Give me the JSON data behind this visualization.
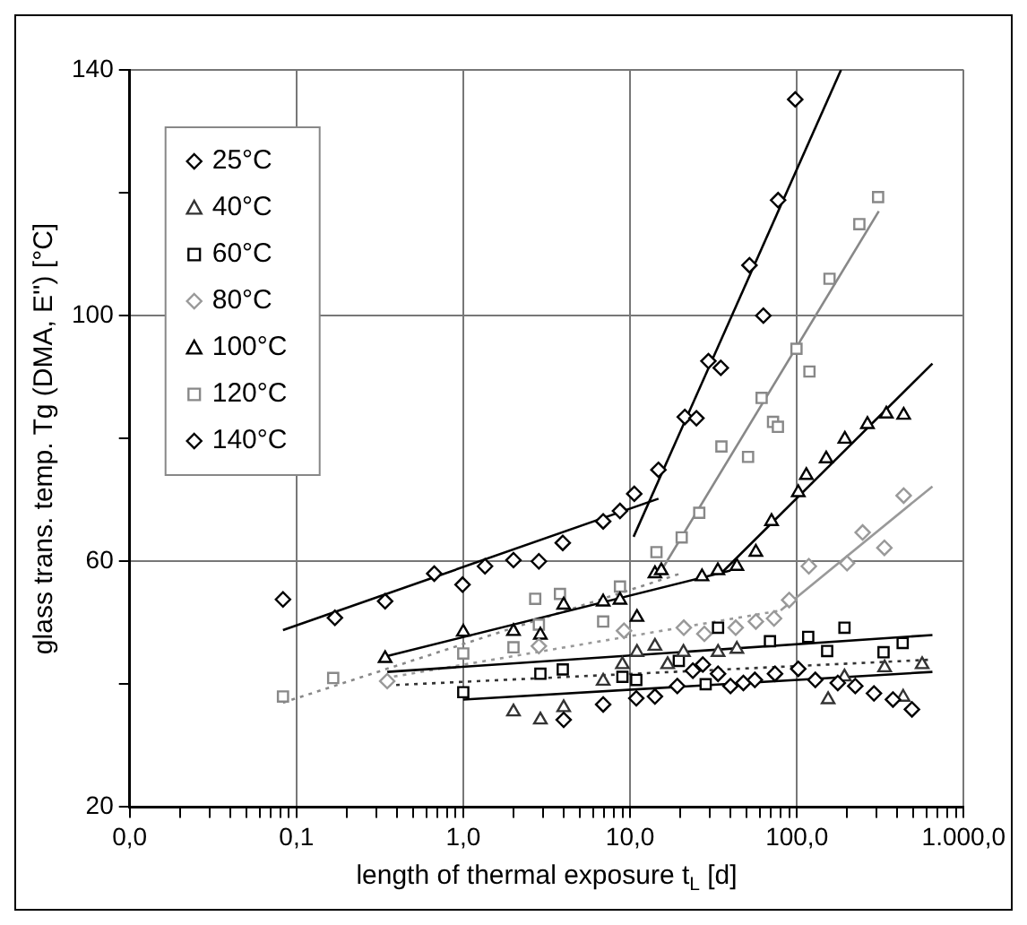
{
  "chart_data": {
    "type": "scatter",
    "xlabel": "length of thermal exposure t$_{L}$ [d]",
    "ylabel": "glass trans. temp. Tg (DMA, E'') [°C]",
    "log": "x",
    "xlim": [
      0.01,
      1000
    ],
    "xticks": [
      {
        "value": 0.01,
        "label": "0,0"
      },
      {
        "value": 0.02,
        "label": null
      },
      {
        "value": 0.03,
        "label": null
      },
      {
        "value": 0.04,
        "label": null
      },
      {
        "value": 0.05,
        "label": null
      },
      {
        "value": 0.06,
        "label": null
      },
      {
        "value": 0.07,
        "label": null
      },
      {
        "value": 0.08,
        "label": null
      },
      {
        "value": 0.09,
        "label": null
      },
      {
        "value": 0.1,
        "label": "0,1"
      },
      {
        "value": 0.2,
        "label": null
      },
      {
        "value": 0.3,
        "label": null
      },
      {
        "value": 0.4,
        "label": null
      },
      {
        "value": 0.5,
        "label": null
      },
      {
        "value": 0.6,
        "label": null
      },
      {
        "value": 0.7,
        "label": null
      },
      {
        "value": 0.8,
        "label": null
      },
      {
        "value": 0.9,
        "label": null
      },
      {
        "value": 1,
        "label": "1,0"
      },
      {
        "value": 2,
        "label": null
      },
      {
        "value": 3,
        "label": null
      },
      {
        "value": 4,
        "label": null
      },
      {
        "value": 5,
        "label": null
      },
      {
        "value": 6,
        "label": null
      },
      {
        "value": 7,
        "label": null
      },
      {
        "value": 8,
        "label": null
      },
      {
        "value": 9,
        "label": null
      },
      {
        "value": 10,
        "label": "10,0"
      },
      {
        "value": 20,
        "label": null
      },
      {
        "value": 30,
        "label": null
      },
      {
        "value": 40,
        "label": null
      },
      {
        "value": 50,
        "label": null
      },
      {
        "value": 60,
        "label": null
      },
      {
        "value": 70,
        "label": null
      },
      {
        "value": 80,
        "label": null
      },
      {
        "value": 90,
        "label": null
      },
      {
        "value": 100,
        "label": "100,0"
      },
      {
        "value": 200,
        "label": null
      },
      {
        "value": 300,
        "label": null
      },
      {
        "value": 400,
        "label": null
      },
      {
        "value": 500,
        "label": null
      },
      {
        "value": 600,
        "label": null
      },
      {
        "value": 700,
        "label": null
      },
      {
        "value": 800,
        "label": null
      },
      {
        "value": 900,
        "label": null
      },
      {
        "value": 1000,
        "label": "1.000,0"
      }
    ],
    "ylim": [
      20,
      140
    ],
    "yticks": [
      20,
      {
        "value": 40,
        "label": null
      },
      60,
      {
        "value": 80,
        "label": null
      },
      100,
      {
        "value": 120,
        "label": null
      },
      140
    ],
    "grid": true,
    "legend": "top left",
    "series": [
      {
        "name": "25°C",
        "color": "#000000",
        "marker": "diamond",
        "x": [
          4.0,
          6.9,
          10.9,
          14.1,
          19.2,
          23.8,
          27.3,
          33.7,
          40,
          47.8,
          56,
          74,
          102,
          129,
          176,
          224,
          290,
          377,
          490
        ],
        "values": [
          34.2,
          36.7,
          37.7,
          38,
          39.7,
          42.2,
          43.2,
          41.7,
          39.7,
          40.2,
          40.7,
          41.7,
          42.5,
          40.7,
          40.2,
          39.7,
          38.5,
          37.5,
          35.9
        ]
      },
      {
        "name": "40°C",
        "color": "#333333",
        "marker": "triangle",
        "x": [
          2.0,
          2.9,
          4.0,
          6.9,
          9,
          11,
          14.1,
          16.8,
          20.9,
          33.7,
          43.7,
          154,
          193,
          336,
          434,
          564
        ],
        "values": [
          35.5,
          34.2,
          36.2,
          40.5,
          43.2,
          45.2,
          46.2,
          43.2,
          45.2,
          45.2,
          45.7,
          37.5,
          41.2,
          42.7,
          37.9,
          43.2
        ]
      },
      {
        "name": "60°C",
        "color": "#000000",
        "marker": "square",
        "x": [
          1.0,
          2.9,
          3.95,
          9.0,
          10.9,
          19.6,
          28.4,
          33.7,
          69,
          117,
          152,
          193,
          331,
          431
        ],
        "values": [
          38.7,
          41.7,
          42.4,
          41.2,
          40.7,
          43.8,
          40,
          49.2,
          47,
          47.7,
          45.4,
          49.2,
          45.2,
          46.7
        ]
      },
      {
        "name": "80°C",
        "color": "#999999",
        "marker": "diamond",
        "x": [
          0.35,
          2.84,
          9.2,
          21,
          27.9,
          43,
          56.8,
          73,
          90,
          118,
          200,
          248,
          335,
          437
        ],
        "values": [
          40.5,
          46.2,
          48.7,
          49.2,
          48.2,
          49.2,
          50.2,
          50.7,
          53.7,
          59.2,
          59.7,
          64.7,
          62.2,
          70.7
        ]
      },
      {
        "name": "100°C",
        "color": "#000000",
        "marker": "triangle",
        "x": [
          0.34,
          1.0,
          2.0,
          2.9,
          4.0,
          6.9,
          8.7,
          11,
          14.1,
          15.4,
          27,
          33.6,
          43.7,
          56.8,
          70.5,
          102,
          114,
          150,
          194,
          265,
          344,
          437
        ],
        "values": [
          44.2,
          48.5,
          48.6,
          48,
          52.9,
          53.4,
          53.7,
          50.9,
          58,
          58.5,
          57.5,
          58.5,
          59.2,
          61.5,
          66.5,
          71.2,
          74,
          76.7,
          79.9,
          82.3,
          84,
          83.8
        ]
      },
      {
        "name": "120°C",
        "color": "#888888",
        "marker": "square",
        "x": [
          0.083,
          0.166,
          1.0,
          2.0,
          2.7,
          2.84,
          3.8,
          6.9,
          8.7,
          14.4,
          20.4,
          26,
          35.3,
          51,
          61.5,
          72,
          77,
          99.5,
          119,
          157,
          237,
          307
        ],
        "values": [
          38,
          41,
          45,
          46,
          53.9,
          49.7,
          54.7,
          50.2,
          55.9,
          61.5,
          63.9,
          67.9,
          78.7,
          77,
          86.6,
          82.7,
          81.9,
          94.6,
          90.9,
          106,
          114.9,
          119.3
        ]
      },
      {
        "name": "140°C",
        "color": "#000000",
        "marker": "diamond",
        "x": [
          0.083,
          0.17,
          0.34,
          0.67,
          0.99,
          1.35,
          2.0,
          2.84,
          3.95,
          6.9,
          8.7,
          10.6,
          14.8,
          21.3,
          25,
          29.5,
          35,
          52,
          63,
          77.2,
          97.8
        ],
        "values": [
          53.8,
          50.8,
          53.5,
          58,
          56.2,
          59.2,
          60.2,
          60,
          63,
          66.5,
          68.2,
          71,
          74.9,
          83.5,
          83.3,
          92.6,
          91.5,
          108.2,
          100,
          118.8,
          135.2
        ]
      },
      {
        "type": "line",
        "color": "#000000",
        "marker": "none",
        "line_style": "solid",
        "x": [
          1,
          650
        ],
        "values": [
          37.5,
          42
        ]
      },
      {
        "type": "line",
        "color": "#333333",
        "marker": "none",
        "line_style": "dotted",
        "x": [
          0.35,
          650
        ],
        "values": [
          39.8,
          44
        ]
      },
      {
        "type": "line",
        "color": "#000000",
        "marker": "none",
        "line_style": "solid",
        "x": [
          0.35,
          650
        ],
        "values": [
          42,
          48
        ]
      },
      {
        "type": "line",
        "color": "#999999",
        "marker": "none",
        "line_style": "dotted",
        "x": [
          0.34,
          80
        ],
        "values": [
          41,
          52
        ]
      },
      {
        "type": "line",
        "color": "#999999",
        "marker": "none",
        "line_style": "solid",
        "x": [
          80,
          650
        ],
        "values": [
          52,
          72.2
        ]
      },
      {
        "type": "line",
        "color": "#000000",
        "marker": "none",
        "line_style": "solid",
        "x": [
          0.34,
          40
        ],
        "values": [
          44.5,
          58.5
        ]
      },
      {
        "type": "line",
        "color": "#000000",
        "marker": "none",
        "line_style": "solid",
        "x": [
          35,
          650
        ],
        "values": [
          58,
          92.2
        ]
      },
      {
        "type": "line",
        "color": "#888888",
        "marker": "none",
        "line_style": "dotted",
        "x": [
          0.083,
          20
        ],
        "values": [
          37,
          58
        ]
      },
      {
        "type": "line",
        "color": "#888888",
        "marker": "none",
        "line_style": "solid",
        "x": [
          15,
          310
        ],
        "values": [
          58,
          117
        ]
      },
      {
        "type": "line",
        "color": "#000000",
        "marker": "none",
        "line_style": "solid",
        "x": [
          0.083,
          14.8
        ],
        "values": [
          48.8,
          70.2
        ]
      },
      {
        "type": "line",
        "color": "#000000",
        "marker": "none",
        "line_style": "solid",
        "x": [
          10.5,
          184
        ],
        "values": [
          64,
          140
        ]
      }
    ]
  }
}
